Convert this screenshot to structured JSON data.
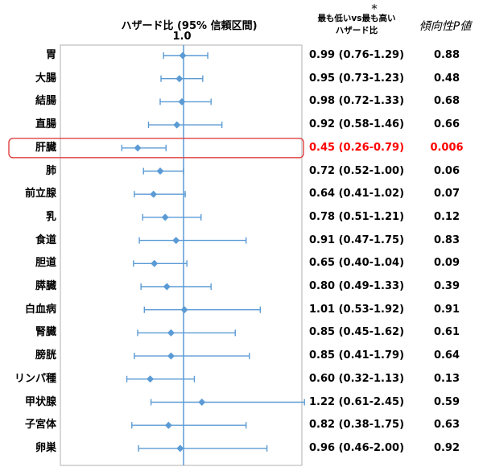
{
  "header": {
    "forest_title": "ハザード比 (95% 信頼区間)",
    "reference_label": "1.0",
    "footnote_mark": "*",
    "hr_header": "最も低いvs最も高い\nハザード比",
    "p_header": "傾向性P値"
  },
  "colors": {
    "marker": "#5B9BD5",
    "reference_line": "#5B9BD5",
    "highlight_border": "#E04040",
    "significant_text": "#ff0000",
    "frame": "#b0b0b0"
  },
  "chart_data": {
    "type": "forest",
    "x_reference": 1.0,
    "x_scale": "linear",
    "xlim": [
      0.1,
      2.45
    ],
    "highlighted_row": "肝臓",
    "rows": [
      {
        "label": "胃",
        "hr": 0.99,
        "lo": 0.76,
        "hi": 1.29,
        "hr_text": "0.99 (0.76-1.29)",
        "p": "0.88",
        "significant": false
      },
      {
        "label": "大腸",
        "hr": 0.95,
        "lo": 0.73,
        "hi": 1.23,
        "hr_text": "0.95 (0.73-1.23)",
        "p": "0.48",
        "significant": false
      },
      {
        "label": "結腸",
        "hr": 0.98,
        "lo": 0.72,
        "hi": 1.33,
        "hr_text": "0.98 (0.72-1.33)",
        "p": "0.68",
        "significant": false
      },
      {
        "label": "直腸",
        "hr": 0.92,
        "lo": 0.58,
        "hi": 1.46,
        "hr_text": "0.92 (0.58-1.46)",
        "p": "0.66",
        "significant": false
      },
      {
        "label": "肝臓",
        "hr": 0.45,
        "lo": 0.26,
        "hi": 0.79,
        "hr_text": "0.45 (0.26-0.79)",
        "p": "0.006",
        "significant": true
      },
      {
        "label": "肺",
        "hr": 0.72,
        "lo": 0.52,
        "hi": 1.0,
        "hr_text": "0.72 (0.52-1.00)",
        "p": "0.06",
        "significant": false
      },
      {
        "label": "前立腺",
        "hr": 0.64,
        "lo": 0.41,
        "hi": 1.02,
        "hr_text": "0.64 (0.41-1.02)",
        "p": "0.07",
        "significant": false
      },
      {
        "label": "乳",
        "hr": 0.78,
        "lo": 0.51,
        "hi": 1.21,
        "hr_text": "0.78 (0.51-1.21)",
        "p": "0.12",
        "significant": false
      },
      {
        "label": "食道",
        "hr": 0.91,
        "lo": 0.47,
        "hi": 1.75,
        "hr_text": "0.91 (0.47-1.75)",
        "p": "0.83",
        "significant": false
      },
      {
        "label": "胆道",
        "hr": 0.65,
        "lo": 0.4,
        "hi": 1.04,
        "hr_text": "0.65 (0.40-1.04)",
        "p": "0.09",
        "significant": false
      },
      {
        "label": "膵臓",
        "hr": 0.8,
        "lo": 0.49,
        "hi": 1.33,
        "hr_text": "0.80 (0.49-1.33)",
        "p": "0.39",
        "significant": false
      },
      {
        "label": "白血病",
        "hr": 1.01,
        "lo": 0.53,
        "hi": 1.92,
        "hr_text": "1.01 (0.53-1.92)",
        "p": "0.91",
        "significant": false
      },
      {
        "label": "腎臓",
        "hr": 0.85,
        "lo": 0.45,
        "hi": 1.62,
        "hr_text": "0.85 (0.45-1.62)",
        "p": "0.61",
        "significant": false
      },
      {
        "label": "膀胱",
        "hr": 0.85,
        "lo": 0.41,
        "hi": 1.79,
        "hr_text": "0.85 (0.41-1.79)",
        "p": "0.64",
        "significant": false
      },
      {
        "label": "リンパ種",
        "hr": 0.6,
        "lo": 0.32,
        "hi": 1.13,
        "hr_text": "0.60 (0.32-1.13)",
        "p": "0.13",
        "significant": false
      },
      {
        "label": "甲状腺",
        "hr": 1.22,
        "lo": 0.61,
        "hi": 2.45,
        "hr_text": "1.22 (0.61-2.45)",
        "p": "0.59",
        "significant": false
      },
      {
        "label": "子宮体",
        "hr": 0.82,
        "lo": 0.38,
        "hi": 1.75,
        "hr_text": "0.82 (0.38-1.75)",
        "p": "0.63",
        "significant": false
      },
      {
        "label": "卵巣",
        "hr": 0.96,
        "lo": 0.46,
        "hi": 2.0,
        "hr_text": "0.96 (0.46-2.00)",
        "p": "0.92",
        "significant": false
      }
    ]
  }
}
